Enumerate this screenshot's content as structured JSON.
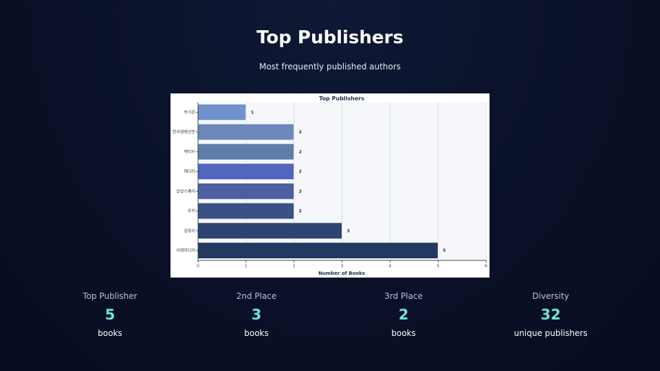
{
  "page": {
    "title": "Top Publishers",
    "subtitle": "Most frequently published authors"
  },
  "chart_data": {
    "type": "bar",
    "orientation": "horizontal",
    "title": "Top Publishers",
    "xlabel": "Number of Books",
    "ylabel": "",
    "xlim": [
      0,
      6
    ],
    "x_ticks": [
      0,
      1,
      2,
      3,
      4,
      5,
      6
    ],
    "grid": true,
    "categories": [
      "부크온",
      "한국경제신문",
      "액티브",
      "에디터",
      "상상스퀘어",
      "부키",
      "김영사",
      "이레미디어"
    ],
    "values": [
      1,
      2,
      2,
      2,
      2,
      2,
      3,
      5
    ],
    "bar_colors": [
      "#7192cc",
      "#6c88bc",
      "#5f7eab",
      "#5266bd",
      "#4b609f",
      "#3a5186",
      "#2d4372",
      "#233a60"
    ],
    "data_labels": [
      "1",
      "2",
      "2",
      "2",
      "2",
      "2",
      "3",
      "5"
    ]
  },
  "stats": [
    {
      "label": "Top Publisher",
      "value": "5",
      "unit": "books"
    },
    {
      "label": "2nd Place",
      "value": "3",
      "unit": "books"
    },
    {
      "label": "3rd Place",
      "value": "2",
      "unit": "books"
    },
    {
      "label": "Diversity",
      "value": "32",
      "unit": "unique publishers"
    }
  ],
  "colors": {
    "accent": "#6ee7d4",
    "background": "#0a1128",
    "plot_background": "#f5f7fa"
  }
}
